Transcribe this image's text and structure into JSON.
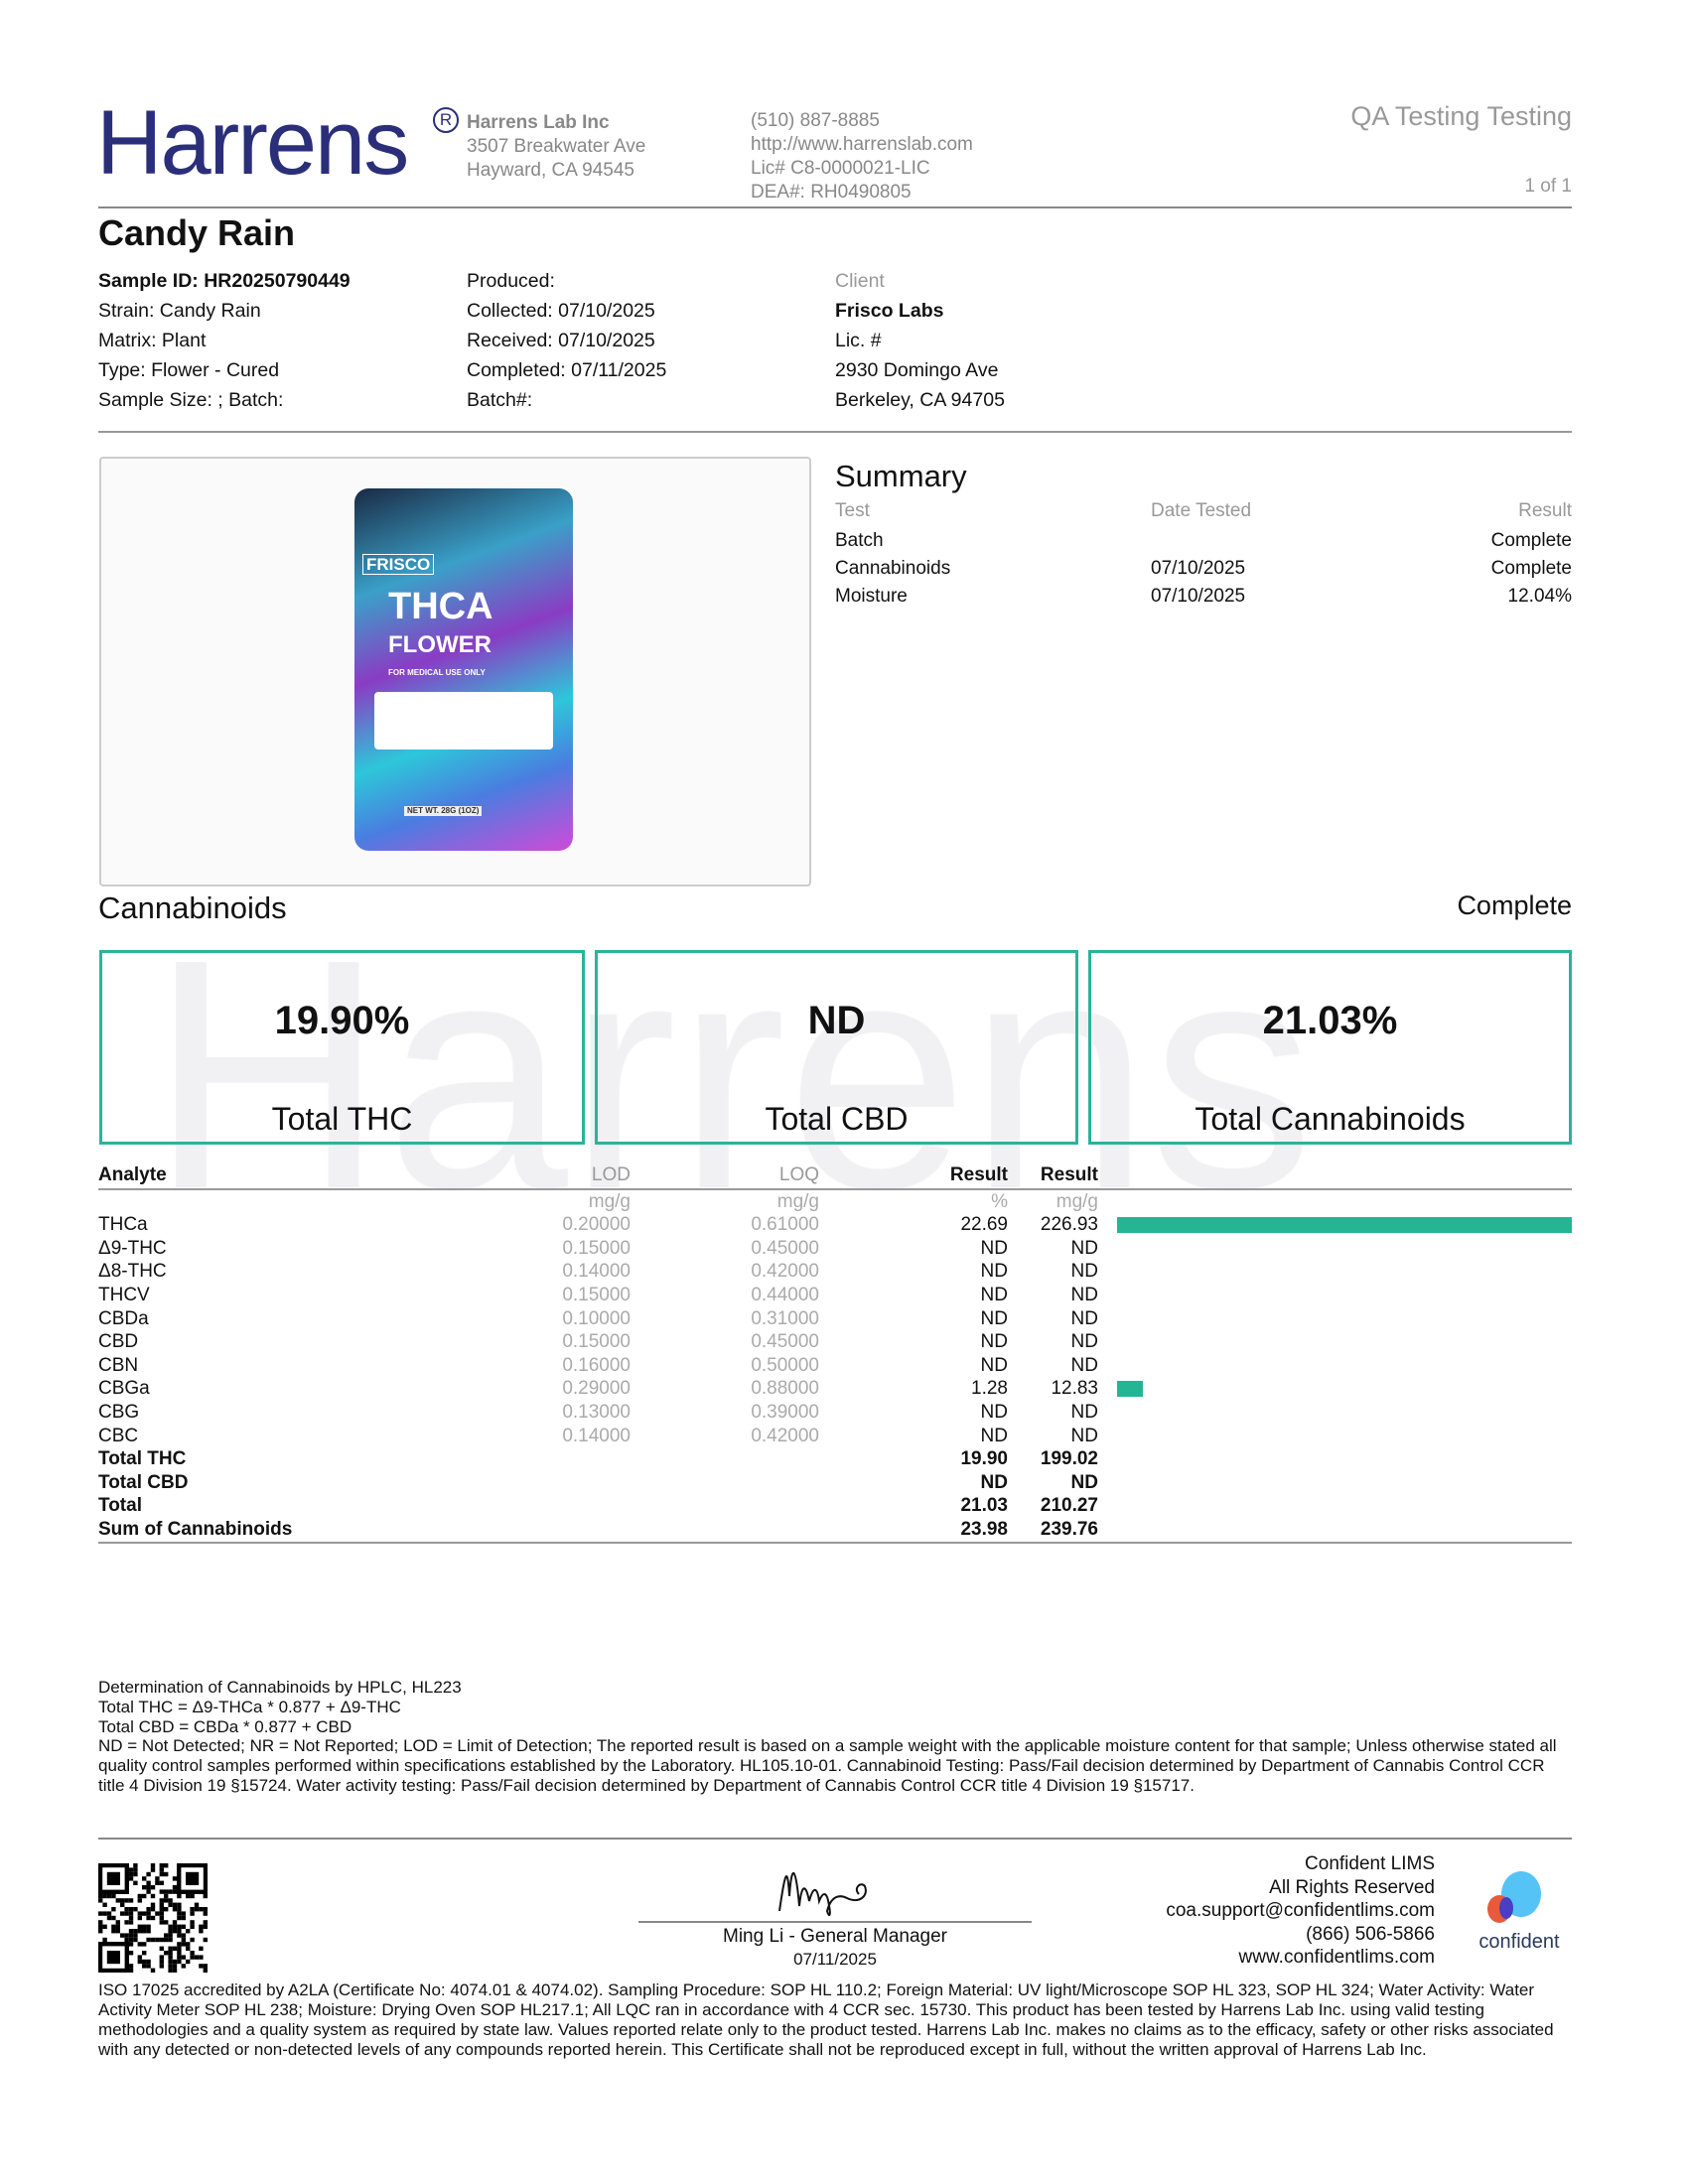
{
  "header": {
    "logo_text": "Harrens",
    "company": "Harrens Lab Inc",
    "address1": "3507 Breakwater Ave",
    "address2": "Hayward, CA 94545",
    "phone": "(510) 887-8885",
    "website": "http://www.harrenslab.com",
    "license": "Lic# C8-0000021-LIC",
    "dea": "DEA#: RH0490805",
    "report_type": "QA Testing Testing",
    "page": "1 of 1"
  },
  "title": "Candy Rain",
  "sample": {
    "col1": [
      "Sample ID: HR20250790449",
      "Strain: Candy Rain",
      "Matrix: Plant",
      "Type: Flower - Cured",
      "Sample Size: ; Batch:"
    ],
    "col2": [
      "Produced:",
      "Collected: 07/10/2025",
      "Received: 07/10/2025",
      "Completed: 07/11/2025",
      "Batch#:"
    ],
    "client_label": "Client",
    "client_name": "Frisco Labs",
    "client_lic": "Lic. #",
    "client_addr1": "2930 Domingo Ave",
    "client_addr2": "Berkeley, CA 94705"
  },
  "photo": {
    "brand": "FRISCO",
    "product1": "THCA",
    "product2": "FLOWER",
    "note": "FOR MEDICAL USE ONLY",
    "weight": "NET WT. 28G (1OZ)"
  },
  "summary": {
    "title": "Summary",
    "headers": [
      "Test",
      "Date Tested",
      "Result"
    ],
    "rows": [
      [
        "Batch",
        "",
        "Complete"
      ],
      [
        "Cannabinoids",
        "07/10/2025",
        "Complete"
      ],
      [
        "Moisture",
        "07/10/2025",
        "12.04%"
      ]
    ]
  },
  "cannabinoids": {
    "title": "Cannabinoids",
    "status": "Complete",
    "totals": [
      {
        "value": "19.90%",
        "label": "Total THC"
      },
      {
        "value": "ND",
        "label": "Total CBD"
      },
      {
        "value": "21.03%",
        "label": "Total Cannabinoids"
      }
    ],
    "headers": [
      "Analyte",
      "LOD",
      "LOQ",
      "Result",
      "Result"
    ],
    "units": [
      "",
      "mg/g",
      "mg/g",
      "%",
      "mg/g"
    ],
    "accent": "#23b594",
    "rows": [
      [
        "THCa",
        "0.20000",
        "0.61000",
        "22.69",
        "226.93"
      ],
      [
        "Δ9-THC",
        "0.15000",
        "0.45000",
        "ND",
        "ND"
      ],
      [
        "Δ8-THC",
        "0.14000",
        "0.42000",
        "ND",
        "ND"
      ],
      [
        "THCV",
        "0.15000",
        "0.44000",
        "ND",
        "ND"
      ],
      [
        "CBDa",
        "0.10000",
        "0.31000",
        "ND",
        "ND"
      ],
      [
        "CBD",
        "0.15000",
        "0.45000",
        "ND",
        "ND"
      ],
      [
        "CBN",
        "0.16000",
        "0.50000",
        "ND",
        "ND"
      ],
      [
        "CBGa",
        "0.29000",
        "0.88000",
        "1.28",
        "12.83"
      ],
      [
        "CBG",
        "0.13000",
        "0.39000",
        "ND",
        "ND"
      ],
      [
        "CBC",
        "0.14000",
        "0.42000",
        "ND",
        "ND"
      ]
    ],
    "total_rows": [
      [
        "Total THC",
        "",
        "",
        "19.90",
        "199.02"
      ],
      [
        "Total CBD",
        "",
        "",
        "ND",
        "ND"
      ],
      [
        "Total",
        "",
        "",
        "21.03",
        "210.27"
      ],
      [
        "Sum of Cannabinoids",
        "",
        "",
        "23.98",
        "239.76"
      ]
    ]
  },
  "footnotes": [
    "Determination of Cannabinoids by HPLC, HL223",
    "Total THC = Δ9-THCa * 0.877 + Δ9-THC",
    "Total CBD = CBDa * 0.877 + CBD",
    "ND = Not Detected; NR = Not Reported; LOD = Limit of Detection; The reported result is based on a sample weight with the applicable moisture content for that sample; Unless otherwise stated all quality control samples performed within specifications established by the Laboratory. HL105.10-01. Cannabinoid Testing: Pass/Fail decision determined by Department of Cannabis Control CCR title 4 Division 19 §15724. Water activity testing: Pass/Fail decision determined by Department of Cannabis Control CCR title 4 Division 19 §15717."
  ],
  "signature": {
    "name": "Ming Li - General Manager",
    "date": "07/11/2025"
  },
  "lims": {
    "lines": [
      "Confident LIMS",
      "All Rights Reserved",
      "coa.support@confidentlims.com",
      "(866) 506-5866",
      "www.confidentlims.com"
    ],
    "logo_text": "confident"
  },
  "disclaimer": "ISO 17025 accredited by A2LA (Certificate No: 4074.01 & 4074.02). Sampling Procedure: SOP HL 110.2; Foreign Material: UV light/Microscope SOP HL 323, SOP HL 324; Water Activity: Water Activity Meter SOP HL 238; Moisture: Drying Oven SOP HL217.1; All LQC ran in accordance with 4 CCR sec. 15730. This product has been tested by Harrens Lab Inc. using valid testing methodologies and a quality system as required by state law. Values reported relate only to the product tested. Harrens Lab Inc. makes no claims as to the efficacy, safety or other risks associated with any detected or non-detected levels of any compounds reported herein. This Certificate shall not be reproduced except in full, without the written approval of Harrens Lab Inc."
}
